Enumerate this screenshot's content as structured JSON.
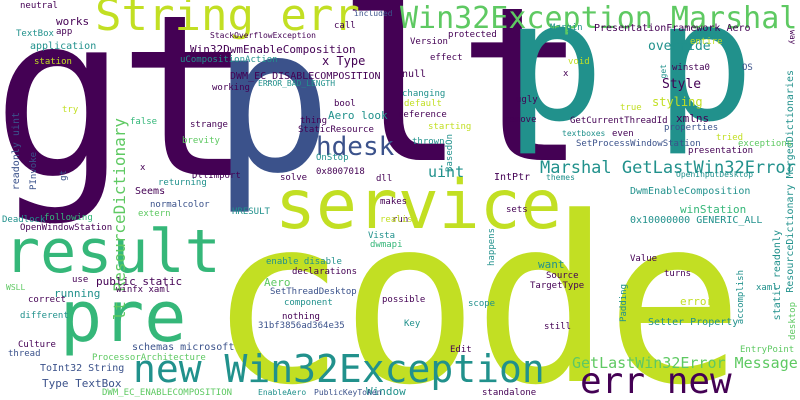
{
  "palette": {
    "dark_purple": "#440154",
    "indigo": "#3b528b",
    "teal": "#21918c",
    "green": "#5ec962",
    "lime": "#c2df23",
    "mid_green": "#35b779"
  },
  "words": [
    {
      "text": "code",
      "color": "lime"
    },
    {
      "text": "gt",
      "color": "dark_purple"
    },
    {
      "text": "lt",
      "color": "dark_purple"
    },
    {
      "text": "p",
      "color": "indigo"
    },
    {
      "text": "p",
      "color": "teal"
    },
    {
      "text": "p",
      "color": "teal"
    },
    {
      "text": "service",
      "color": "lime"
    },
    {
      "text": "result",
      "color": "mid_green"
    },
    {
      "text": "pre",
      "color": "mid_green"
    },
    {
      "text": "String err",
      "color": "lime"
    },
    {
      "text": "new Win32Exception",
      "color": "teal"
    },
    {
      "text": "err new",
      "color": "dark_purple"
    },
    {
      "text": "Win32Exception Marshal",
      "color": "green"
    },
    {
      "text": "hdesk",
      "color": "indigo"
    },
    {
      "text": "Marshal GetLastWin32Error",
      "color": "teal"
    },
    {
      "text": "GetLastWin32Error Message",
      "color": "green"
    },
    {
      "text": "lt ResourceDictionary",
      "color": "green"
    },
    {
      "text": "Win32DwmEnableComposition",
      "color": "dark_purple"
    },
    {
      "text": "DWM_EC_DISABLECOMPOSITION",
      "color": "dark_purple"
    },
    {
      "text": "PresentationFramework Aero",
      "color": "dark_purple"
    },
    {
      "text": "override",
      "color": "teal"
    },
    {
      "text": "Style",
      "color": "dark_purple"
    },
    {
      "text": "styling",
      "color": "lime"
    },
    {
      "text": "uint",
      "color": "teal"
    },
    {
      "text": "Aero look",
      "color": "teal"
    },
    {
      "text": "x Type",
      "color": "dark_purple"
    },
    {
      "text": "works",
      "color": "dark_purple"
    },
    {
      "text": "application",
      "color": "teal"
    },
    {
      "text": "public static",
      "color": "dark_purple"
    },
    {
      "text": "running",
      "color": "teal"
    },
    {
      "text": "Seems",
      "color": "dark_purple"
    },
    {
      "text": "Aero",
      "color": "green"
    },
    {
      "text": "DwmEnableComposition",
      "color": "teal"
    },
    {
      "text": "winStation",
      "color": "mid_green"
    },
    {
      "text": "0x10000000 GENERIC_ALL",
      "color": "teal"
    },
    {
      "text": "enable disable",
      "color": "teal"
    },
    {
      "text": "want",
      "color": "teal"
    },
    {
      "text": "error",
      "color": "lime"
    },
    {
      "text": "Setter Property",
      "color": "teal"
    },
    {
      "text": "Type TextBox",
      "color": "indigo"
    },
    {
      "text": "ToInt32 String",
      "color": "indigo"
    },
    {
      "text": "schemas microsoft",
      "color": "indigo"
    },
    {
      "text": "readonly uint",
      "color": "indigo"
    },
    {
      "text": "static readonly",
      "color": "teal"
    },
    {
      "text": "ResourceDictionary MergedDictionaries",
      "color": "teal"
    },
    {
      "text": "exceptions",
      "color": "green"
    },
    {
      "text": "xmlns",
      "color": "dark_purple"
    },
    {
      "text": "properties",
      "color": "indigo"
    },
    {
      "text": "IntPtr",
      "color": "dark_purple"
    },
    {
      "text": "null",
      "color": "dark_purple"
    },
    {
      "text": "Value",
      "color": "dark_purple"
    },
    {
      "text": "Key",
      "color": "teal"
    },
    {
      "text": "Vista",
      "color": "teal"
    },
    {
      "text": "dwmapi",
      "color": "mid_green"
    },
    {
      "text": "Window",
      "color": "teal"
    },
    {
      "text": "Edit",
      "color": "dark_purple"
    },
    {
      "text": "still",
      "color": "dark_purple"
    },
    {
      "text": "TargetType",
      "color": "dark_purple"
    },
    {
      "text": "Source",
      "color": "dark_purple"
    },
    {
      "text": "SetThreadDesktop",
      "color": "indigo"
    },
    {
      "text": "component",
      "color": "teal"
    },
    {
      "text": "nothing",
      "color": "dark_purple"
    },
    {
      "text": "31bf3856ad364e35",
      "color": "indigo"
    },
    {
      "text": "PublicKeyToken",
      "color": "indigo"
    },
    {
      "text": "EnableAero",
      "color": "teal"
    },
    {
      "text": "standalone",
      "color": "dark_purple"
    },
    {
      "text": "DWM_EC_ENABLECOMPOSITION",
      "color": "green"
    },
    {
      "text": "ProcessorArchitecture",
      "color": "green"
    },
    {
      "text": "thread",
      "color": "indigo"
    },
    {
      "text": "Culture",
      "color": "dark_purple"
    },
    {
      "text": "different",
      "color": "teal"
    },
    {
      "text": "correct",
      "color": "dark_purple"
    },
    {
      "text": "use",
      "color": "dark_purple"
    },
    {
      "text": "WSLL",
      "color": "green"
    },
    {
      "text": "Deadlock",
      "color": "teal"
    },
    {
      "text": "OpenWindowStation",
      "color": "dark_purple"
    },
    {
      "text": "following",
      "color": "mid_green"
    },
    {
      "text": "extern",
      "color": "green"
    },
    {
      "text": "normalcolor",
      "color": "indigo"
    },
    {
      "text": "DllImport",
      "color": "dark_purple"
    },
    {
      "text": "returning",
      "color": "teal"
    },
    {
      "text": "brevity",
      "color": "green"
    },
    {
      "text": "strange",
      "color": "dark_purple"
    },
    {
      "text": "false",
      "color": "mid_green"
    },
    {
      "text": "try",
      "color": "lime"
    },
    {
      "text": "PInvoke",
      "color": "indigo"
    },
    {
      "text": "TextBox",
      "color": "teal"
    },
    {
      "text": "neutral",
      "color": "dark_purple"
    },
    {
      "text": "app",
      "color": "dark_purple"
    },
    {
      "text": "station",
      "color": "lime"
    },
    {
      "text": "StackOverflowException",
      "color": "dark_purple"
    },
    {
      "text": "uCompositionAction",
      "color": "teal"
    },
    {
      "text": "ERROR_BAD_LENGTH",
      "color": "teal"
    },
    {
      "text": "working",
      "color": "dark_purple"
    },
    {
      "text": "thing",
      "color": "dark_purple"
    },
    {
      "text": "StaticResource",
      "color": "dark_purple"
    },
    {
      "text": "OnStop",
      "color": "teal"
    },
    {
      "text": "solve",
      "color": "dark_purple"
    },
    {
      "text": "0x8007018",
      "color": "dark_purple"
    },
    {
      "text": "dll",
      "color": "dark_purple"
    },
    {
      "text": "HRESULT",
      "color": "teal"
    },
    {
      "text": "winfx xaml",
      "color": "dark_purple"
    },
    {
      "text": "declarations",
      "color": "dark_purple"
    },
    {
      "text": "run",
      "color": "dark_purple"
    },
    {
      "text": "makes",
      "color": "dark_purple"
    },
    {
      "text": "realise",
      "color": "lime"
    },
    {
      "text": "themes",
      "color": "teal"
    },
    {
      "text": "sets",
      "color": "dark_purple"
    },
    {
      "text": "bool",
      "color": "dark_purple"
    },
    {
      "text": "changing",
      "color": "teal"
    },
    {
      "text": "default",
      "color": "lime"
    },
    {
      "text": "reference",
      "color": "dark_purple"
    },
    {
      "text": "starting",
      "color": "lime"
    },
    {
      "text": "thrown",
      "color": "teal"
    },
    {
      "text": "remove",
      "color": "dark_purple"
    },
    {
      "text": "ugly",
      "color": "dark_purple"
    },
    {
      "text": "effect",
      "color": "dark_purple"
    },
    {
      "text": "call",
      "color": "dark_purple"
    },
    {
      "text": "included",
      "color": "indigo"
    },
    {
      "text": "Version",
      "color": "dark_purple"
    },
    {
      "text": "protected",
      "color": "dark_purple"
    },
    {
      "text": "Margin",
      "color": "teal"
    },
    {
      "text": "void",
      "color": "lime"
    },
    {
      "text": "winsta0",
      "color": "dark_purple"
    },
    {
      "text": "OS",
      "color": "indigo"
    },
    {
      "text": "GetCurrentThreadId",
      "color": "dark_purple"
    },
    {
      "text": "SetProcessWindowStation",
      "color": "indigo"
    },
    {
      "text": "textboxes",
      "color": "teal"
    },
    {
      "text": "even",
      "color": "dark_purple"
    },
    {
      "text": "true",
      "color": "lime"
    },
    {
      "text": "tried",
      "color": "lime"
    },
    {
      "text": "presentation",
      "color": "dark_purple"
    },
    {
      "text": "OpenInputDesktop",
      "color": "teal"
    },
    {
      "text": "scope",
      "color": "teal"
    },
    {
      "text": "possible",
      "color": "dark_purple"
    },
    {
      "text": "turns",
      "color": "dark_purple"
    },
    {
      "text": "Padding",
      "color": "teal"
    },
    {
      "text": "xaml",
      "color": "teal"
    },
    {
      "text": "accomplish",
      "color": "teal"
    },
    {
      "text": "desktop",
      "color": "green"
    },
    {
      "text": "EntryPoint",
      "color": "green"
    },
    {
      "text": "happens",
      "color": "teal"
    },
    {
      "text": "BasedOn",
      "color": "teal"
    },
    {
      "text": "entire",
      "color": "lime"
    },
    {
      "text": "way",
      "color": "dark_purple"
    },
    {
      "text": "get",
      "color": "teal"
    },
    {
      "text": "x",
      "color": "dark_purple"
    },
    {
      "text": "x",
      "color": "dark_purple"
    },
    {
      "text": "gt",
      "color": "indigo"
    }
  ]
}
